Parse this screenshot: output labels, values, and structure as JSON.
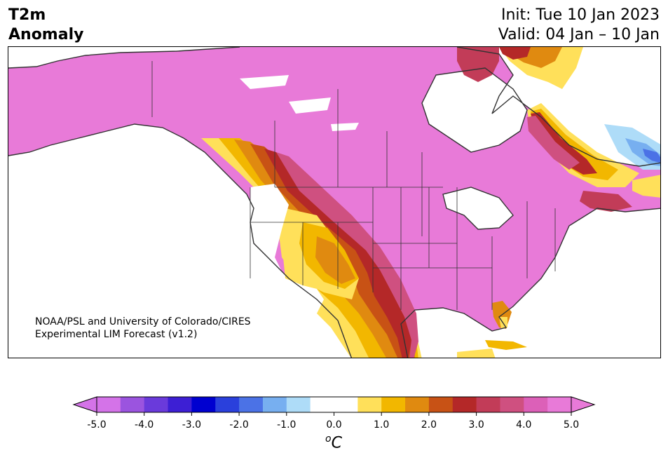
{
  "header": {
    "title_line1": "T2m",
    "title_line2": "Anomaly",
    "init": "Init: Tue 10 Jan 2023",
    "valid": "Valid: 04 Jan – 10 Jan"
  },
  "credit": {
    "line1": "NOAA/PSL and University of Colorado/CIRES",
    "line2": "Experimental LIM Forecast (v1.2)"
  },
  "colorbar": {
    "unit_super": "o",
    "unit_main": "C",
    "ticks": [
      "-5.0",
      "-4.0",
      "-3.0",
      "-2.0",
      "-1.0",
      "0.0",
      "1.0",
      "2.0",
      "3.0",
      "4.0",
      "5.0"
    ],
    "colors": [
      "#d473e8",
      "#9b54df",
      "#6a3adb",
      "#3d1fd4",
      "#0000d0",
      "#2a40dc",
      "#4b72e6",
      "#77aff0",
      "#aedcf8",
      "#ffffff",
      "#ffffff",
      "#ffe05a",
      "#f2b700",
      "#e08a10",
      "#c85215",
      "#b42828",
      "#c23c58",
      "#cf5080",
      "#dc60b8",
      "#e87ad8"
    ],
    "low_extend_color": "#d473e8",
    "high_extend_color": "#e87ad8"
  },
  "map_colors": {
    "anomaly_high": "#e87ad8",
    "pink": "#dc60b8",
    "rose": "#cf5080",
    "crimson": "#c23c58",
    "red": "#b42828",
    "orange_dark": "#c85215",
    "orange": "#e08a10",
    "gold": "#f2b700",
    "yellow": "#ffe05a",
    "light_blue": "#aedcf8",
    "blue": "#77aff0",
    "mid_blue": "#4b72e6",
    "coast": "#333333"
  }
}
